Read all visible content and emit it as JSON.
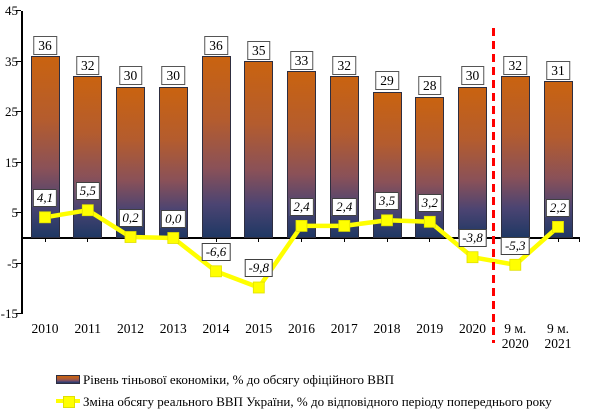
{
  "chart_data": {
    "type": "bar",
    "subtype": "bar-line-combo",
    "categories": [
      [
        "2010"
      ],
      [
        "2011"
      ],
      [
        "2012"
      ],
      [
        "2013"
      ],
      [
        "2014"
      ],
      [
        "2015"
      ],
      [
        "2016"
      ],
      [
        "2017"
      ],
      [
        "2018"
      ],
      [
        "2019"
      ],
      [
        "2020"
      ],
      [
        "9 м.",
        "2020"
      ],
      [
        "9 м.",
        "2021"
      ]
    ],
    "series": [
      {
        "name": "Рівень тіньової економіки, % до обсягу офіційного ВВП",
        "type": "bar",
        "values": [
          36,
          32,
          30,
          30,
          36,
          35,
          33,
          32,
          29,
          28,
          30,
          32,
          31
        ],
        "labels": [
          "36",
          "32",
          "30",
          "30",
          "36",
          "35",
          "33",
          "32",
          "29",
          "28",
          "30",
          "32",
          "31"
        ]
      },
      {
        "name": "Зміна обсягу реального ВВП України, % до відповідного періоду попереднього року",
        "type": "line",
        "values": [
          4.1,
          5.5,
          0.2,
          0.0,
          -6.6,
          -9.8,
          2.4,
          2.4,
          3.5,
          3.2,
          -3.8,
          -5.3,
          2.2
        ],
        "labels": [
          "4,1",
          "5,5",
          "0,2",
          "0,0",
          "-6,6",
          "-9,8",
          "2,4",
          "2,4",
          "3,5",
          "3,2",
          "-3,8",
          "-5,3",
          "2,2"
        ]
      }
    ],
    "y_axis": {
      "min": -15,
      "max": 45,
      "tick_values": [
        45,
        35,
        25,
        15,
        5,
        -5,
        -15
      ],
      "tick_labels": [
        "45",
        "35",
        "25",
        "15",
        "5",
        "-5",
        "-15"
      ]
    },
    "separator_after_index": 10,
    "grid": false,
    "legend_position": "bottom",
    "colors": {
      "bar_top": "#C96310",
      "bar_mid1": "#B45C2E",
      "bar_mid2": "#8A5158",
      "bar_mid3": "#4B4472",
      "bar_bottom": "#1F3864",
      "bar_border": "#2e2e40",
      "line": "#FFFF00",
      "line_edge": "#E0E000",
      "separator": "#FF0000",
      "axis": "#000000"
    }
  },
  "legend": {
    "items": [
      {
        "label": "Рівень тіньової економіки, % до обсягу офіційного ВВП",
        "swatch": "bar"
      },
      {
        "label": "Зміна обсягу реального ВВП України, % до відповідного періоду попереднього року",
        "swatch": "line"
      }
    ]
  }
}
